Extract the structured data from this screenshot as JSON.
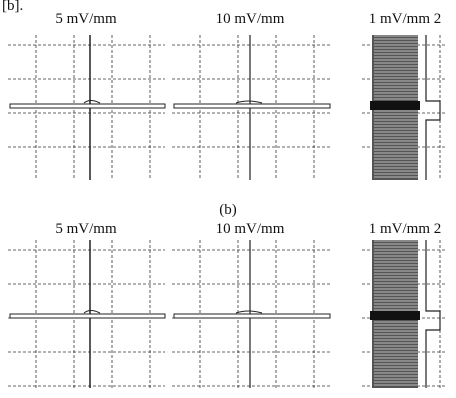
{
  "header": {
    "label": "[b]."
  },
  "rows": [
    {
      "panels": [
        {
          "title": "5 mV/mm"
        },
        {
          "title": "10 mV/mm"
        },
        {
          "title": "1 mV/mm 2"
        }
      ]
    },
    {
      "caption": "(b)",
      "panels": [
        {
          "title": "5 mV/mm"
        },
        {
          "title": "10 mV/mm"
        },
        {
          "title": "1 mV/mm 2"
        }
      ]
    }
  ]
}
